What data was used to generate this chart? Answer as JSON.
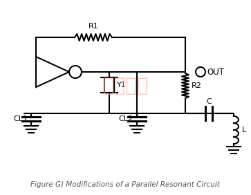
{
  "title": "Figure G) Modifications of a Parallel Resonant Circuit",
  "bg": "#ffffff",
  "lc": "#000000",
  "wm": "亿金电子",
  "wm_color": "#f5b0a0",
  "labels": {
    "R1": "R1",
    "R2": "R2",
    "Y1": "Y1",
    "CL1": "CL1",
    "CL2": "CL2",
    "C": "C",
    "L": "L",
    "OUT": "OUT"
  }
}
